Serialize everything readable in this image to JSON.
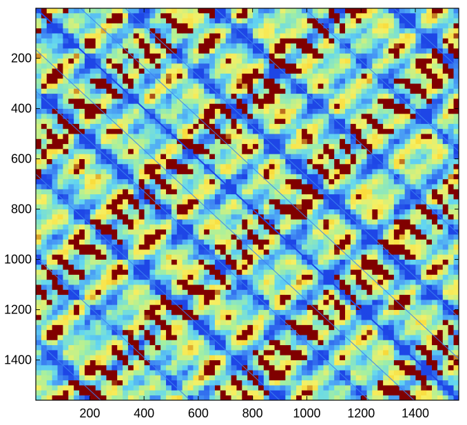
{
  "chart_data": {
    "type": "heatmap",
    "title": "",
    "xlabel": "",
    "ylabel": "",
    "xlim": [
      1,
      1560
    ],
    "ylim": [
      1,
      1560
    ],
    "y_reversed": true,
    "grid": false,
    "legend": "none",
    "x_ticks": [
      200,
      400,
      600,
      800,
      1000,
      1200,
      1400
    ],
    "y_ticks": [
      200,
      400,
      600,
      800,
      1000,
      1200,
      1400
    ],
    "x_tick_labels": [
      "200",
      "400",
      "600",
      "800",
      "1000",
      "1200",
      "1400"
    ],
    "y_tick_labels": [
      "200",
      "400",
      "600",
      "800",
      "1000",
      "1200",
      "1400"
    ],
    "colormap": "jet",
    "colors": {
      "low": "#1e46e6",
      "mid_low": "#5ac8f0",
      "mid": "#a8f096",
      "mid_high": "#f5f064",
      "high": "#800000"
    },
    "description_values": {
      "diagonal_value": 0,
      "max_value": 1
    }
  }
}
